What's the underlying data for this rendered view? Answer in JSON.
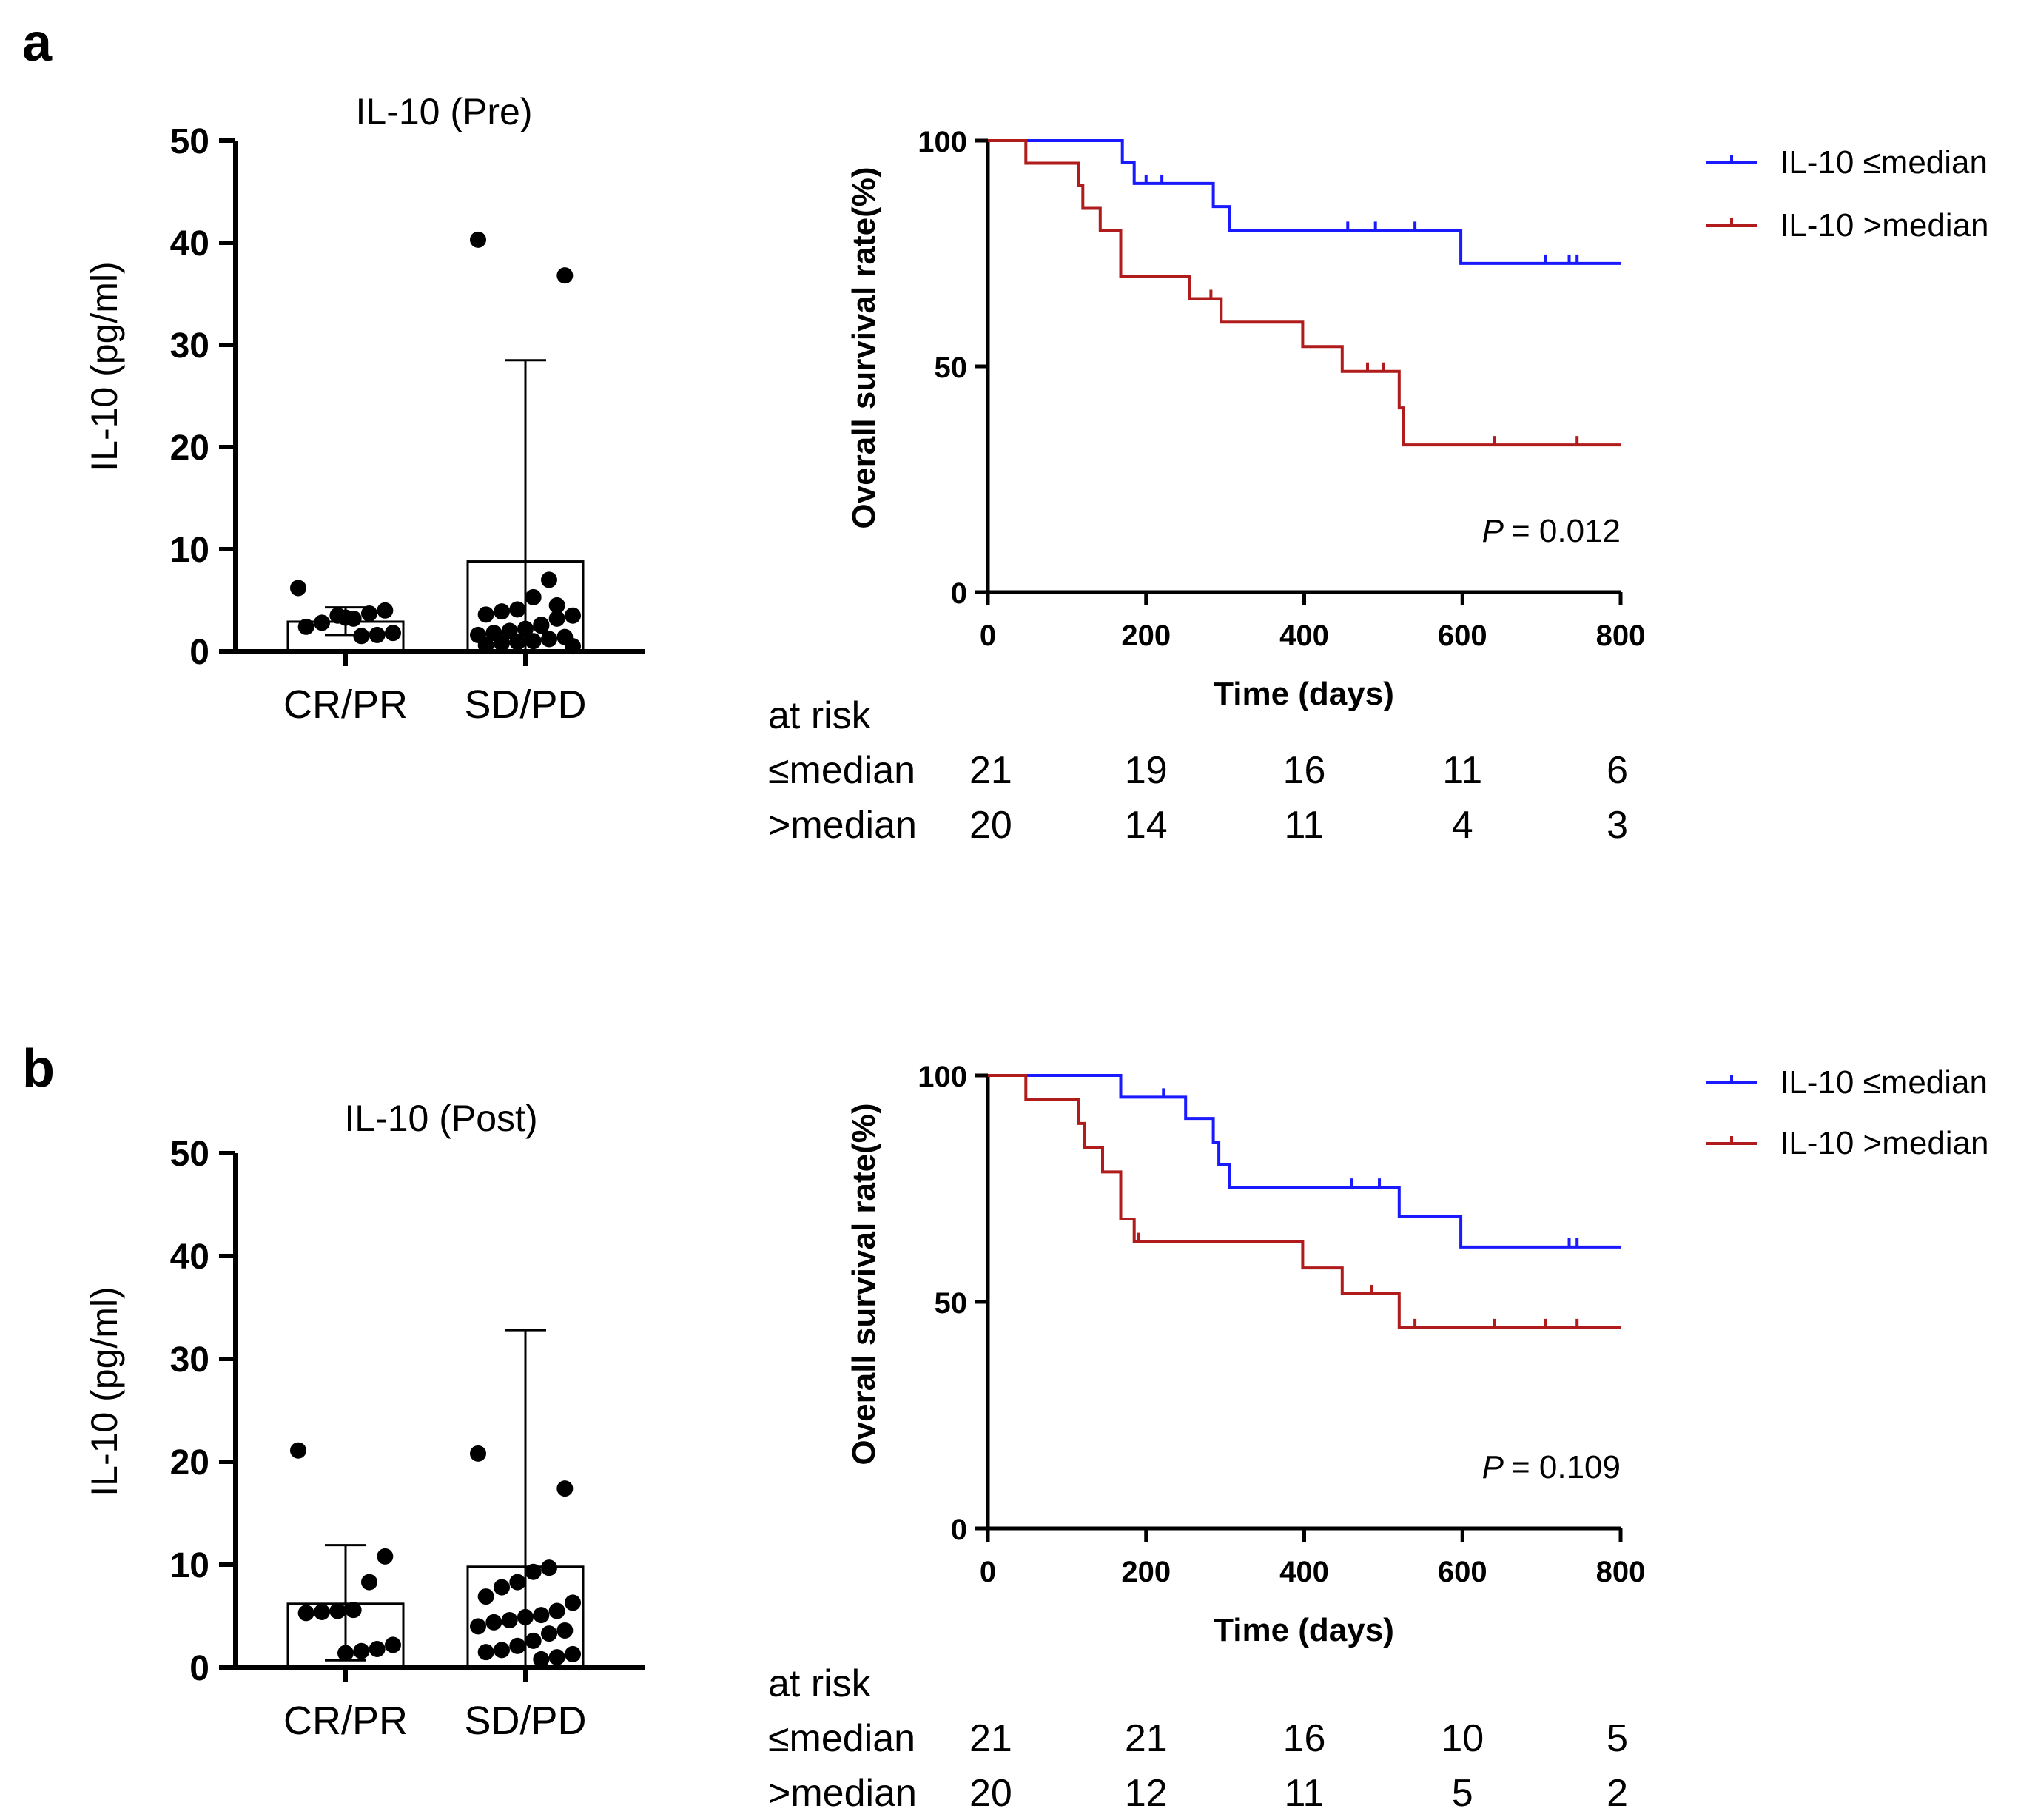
{
  "colors": {
    "low": "#1a1aff",
    "high": "#b01c1c",
    "axis": "#000000"
  },
  "chart_data": [
    {
      "id": "a_bar",
      "panel_label": "a",
      "type": "bar",
      "title": "IL-10 (Pre)",
      "ylabel": "IL-10 (pg/ml)",
      "ylim": [
        0,
        50
      ],
      "yticks": [
        "0",
        "10",
        "20",
        "30",
        "40",
        "50"
      ],
      "categories": [
        "CR/PR",
        "SD/PD"
      ],
      "means": [
        2.9,
        8.8
      ],
      "error_low": [
        1.6,
        0
      ],
      "error_high": [
        4.3,
        28.5
      ],
      "points": [
        [
          6.2,
          4.0,
          3.7,
          3.2,
          3.5,
          2.8,
          2.4,
          1.8,
          1.6,
          1.5,
          3.3
        ],
        [
          40.3,
          36.8,
          7.0,
          5.3,
          4.1,
          3.9,
          3.6,
          3.5,
          3.2,
          2.6,
          2.2,
          2.0,
          1.8,
          1.6,
          1.4,
          1.2,
          1.0,
          0.9,
          0.8,
          0.6,
          0.5,
          4.5,
          2.5
        ]
      ]
    },
    {
      "id": "a_km",
      "type": "line",
      "ylabel": "Overall survival rate(%)",
      "xlabel": "Time (days)",
      "xlim": [
        0,
        800
      ],
      "ylim": [
        0,
        100
      ],
      "xticks": [
        "0",
        "200",
        "400",
        "600",
        "800"
      ],
      "yticks": [
        "0",
        "50",
        "100"
      ],
      "pvalue_label": "P",
      "pvalue_text": "= 0.012",
      "series": [
        {
          "name": "IL-10 ≤median",
          "key": "low",
          "steps": [
            [
              0,
              100
            ],
            [
              170,
              100
            ],
            [
              170,
              95.2
            ],
            [
              185,
              95.2
            ],
            [
              185,
              90.5
            ],
            [
              285,
              90.5
            ],
            [
              285,
              85.4
            ],
            [
              305,
              85.4
            ],
            [
              305,
              80.1
            ],
            [
              598,
              80.1
            ],
            [
              598,
              72.8
            ],
            [
              800,
              72.8
            ]
          ],
          "censors": [
            [
              200,
              90.5
            ],
            [
              220,
              90.5
            ],
            [
              455,
              80.1
            ],
            [
              490,
              80.1
            ],
            [
              540,
              80.1
            ],
            [
              705,
              72.8
            ],
            [
              735,
              72.8
            ],
            [
              745,
              72.8
            ]
          ]
        },
        {
          "name": "IL-10 >median",
          "key": "high",
          "steps": [
            [
              0,
              100
            ],
            [
              48,
              100
            ],
            [
              48,
              95
            ],
            [
              115,
              95
            ],
            [
              115,
              90
            ],
            [
              120,
              90
            ],
            [
              120,
              85
            ],
            [
              142,
              85
            ],
            [
              142,
              80
            ],
            [
              168,
              80
            ],
            [
              168,
              70
            ],
            [
              255,
              70
            ],
            [
              255,
              65
            ],
            [
              295,
              65
            ],
            [
              295,
              59.8
            ],
            [
              398,
              59.8
            ],
            [
              398,
              54.4
            ],
            [
              448,
              54.4
            ],
            [
              448,
              48.9
            ],
            [
              520,
              48.9
            ],
            [
              520,
              40.8
            ],
            [
              525,
              40.8
            ],
            [
              525,
              32.6
            ],
            [
              800,
              32.6
            ]
          ],
          "censors": [
            [
              282,
              65
            ],
            [
              480,
              48.9
            ],
            [
              500,
              48.9
            ],
            [
              640,
              32.6
            ],
            [
              745,
              32.6
            ]
          ]
        }
      ],
      "at_risk": {
        "title": "at risk",
        "rows": [
          {
            "label": "≤median",
            "values": [
              "21",
              "19",
              "16",
              "11",
              "6"
            ]
          },
          {
            "label": ">median",
            "values": [
              "20",
              "14",
              "11",
              "4",
              "3"
            ]
          }
        ]
      }
    },
    {
      "id": "b_bar",
      "panel_label": "b",
      "type": "bar",
      "title": "IL-10 (Post)",
      "ylabel": "IL-10 (pg/ml)",
      "ylim": [
        0,
        50
      ],
      "yticks": [
        "0",
        "10",
        "20",
        "30",
        "40",
        "50"
      ],
      "categories": [
        "CR/PR",
        "SD/PD"
      ],
      "means": [
        6.2,
        9.8
      ],
      "error_low": [
        0.7,
        0
      ],
      "error_high": [
        11.9,
        32.8
      ],
      "points": [
        [
          21.1,
          10.8,
          8.3,
          5.6,
          5.5,
          5.4,
          5.3,
          2.2,
          1.8,
          1.6,
          1.4
        ],
        [
          20.8,
          17.4,
          9.7,
          9.3,
          8.3,
          7.8,
          6.9,
          6.3,
          5.5,
          5.1,
          4.9,
          4.6,
          4.4,
          4.0,
          3.6,
          3.3,
          2.6,
          2.1,
          1.7,
          1.5,
          1.3,
          1.0,
          0.8
        ]
      ]
    },
    {
      "id": "b_km",
      "type": "line",
      "ylabel": "Overall survival rate(%)",
      "xlabel": "Time (days)",
      "xlim": [
        0,
        800
      ],
      "ylim": [
        0,
        100
      ],
      "xticks": [
        "0",
        "200",
        "400",
        "600",
        "800"
      ],
      "yticks": [
        "0",
        "50",
        "100"
      ],
      "pvalue_label": "P",
      "pvalue_text": "= 0.109",
      "series": [
        {
          "name": "IL-10 ≤median",
          "key": "low",
          "steps": [
            [
              0,
              100
            ],
            [
              168,
              100
            ],
            [
              168,
              95.2
            ],
            [
              250,
              95.2
            ],
            [
              250,
              90.5
            ],
            [
              285,
              90.5
            ],
            [
              285,
              85.3
            ],
            [
              292,
              85.3
            ],
            [
              292,
              80.3
            ],
            [
              305,
              80.3
            ],
            [
              305,
              75.3
            ],
            [
              520,
              75.3
            ],
            [
              520,
              68.9
            ],
            [
              598,
              68.9
            ],
            [
              598,
              62.1
            ],
            [
              800,
              62.1
            ]
          ],
          "censors": [
            [
              222,
              95.2
            ],
            [
              460,
              75.3
            ],
            [
              495,
              75.3
            ],
            [
              735,
              62.1
            ],
            [
              745,
              62.1
            ]
          ]
        },
        {
          "name": "IL-10 >median",
          "key": "high",
          "steps": [
            [
              0,
              100
            ],
            [
              48,
              100
            ],
            [
              48,
              94.7
            ],
            [
              115,
              94.7
            ],
            [
              115,
              89.4
            ],
            [
              122,
              89.4
            ],
            [
              122,
              84.1
            ],
            [
              145,
              84.1
            ],
            [
              145,
              78.7
            ],
            [
              168,
              78.7
            ],
            [
              168,
              68.3
            ],
            [
              185,
              68.3
            ],
            [
              185,
              63.3
            ],
            [
              398,
              63.3
            ],
            [
              398,
              57.5
            ],
            [
              448,
              57.5
            ],
            [
              448,
              51.8
            ],
            [
              520,
              51.8
            ],
            [
              520,
              44.3
            ],
            [
              800,
              44.3
            ]
          ],
          "censors": [
            [
              190,
              63.3
            ],
            [
              485,
              51.8
            ],
            [
              540,
              44.3
            ],
            [
              640,
              44.3
            ],
            [
              705,
              44.3
            ],
            [
              745,
              44.3
            ]
          ]
        }
      ],
      "at_risk": {
        "title": "at risk",
        "rows": [
          {
            "label": "≤median",
            "values": [
              "21",
              "21",
              "16",
              "10",
              "5"
            ]
          },
          {
            "label": ">median",
            "values": [
              "20",
              "12",
              "11",
              "5",
              "2"
            ]
          }
        ]
      }
    }
  ]
}
